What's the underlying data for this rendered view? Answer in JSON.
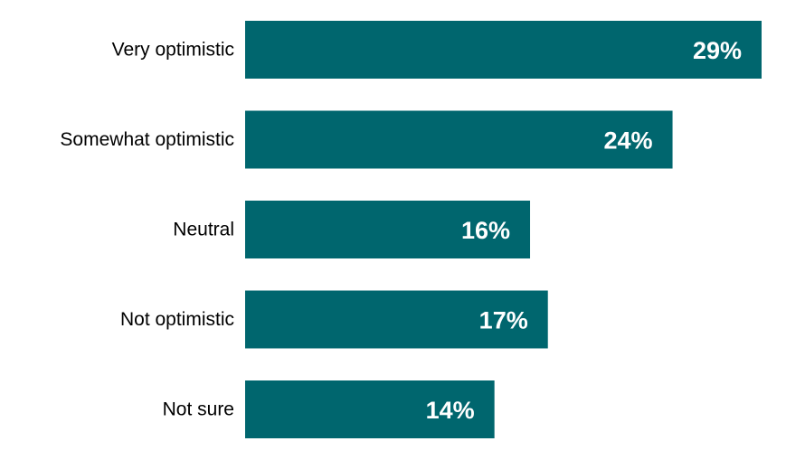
{
  "chart_data": {
    "type": "bar",
    "orientation": "horizontal",
    "categories": [
      "Very optimistic",
      "Somewhat optimistic",
      "Neutral",
      "Not optimistic",
      "Not sure"
    ],
    "values": [
      29,
      24,
      16,
      17,
      14
    ],
    "value_labels": [
      "29%",
      "24%",
      "16%",
      "17%",
      "14%"
    ],
    "xlim": [
      0,
      29
    ],
    "grid": false,
    "legend": "none",
    "bar_color": "#00666e",
    "label_color": "#ffffff"
  }
}
